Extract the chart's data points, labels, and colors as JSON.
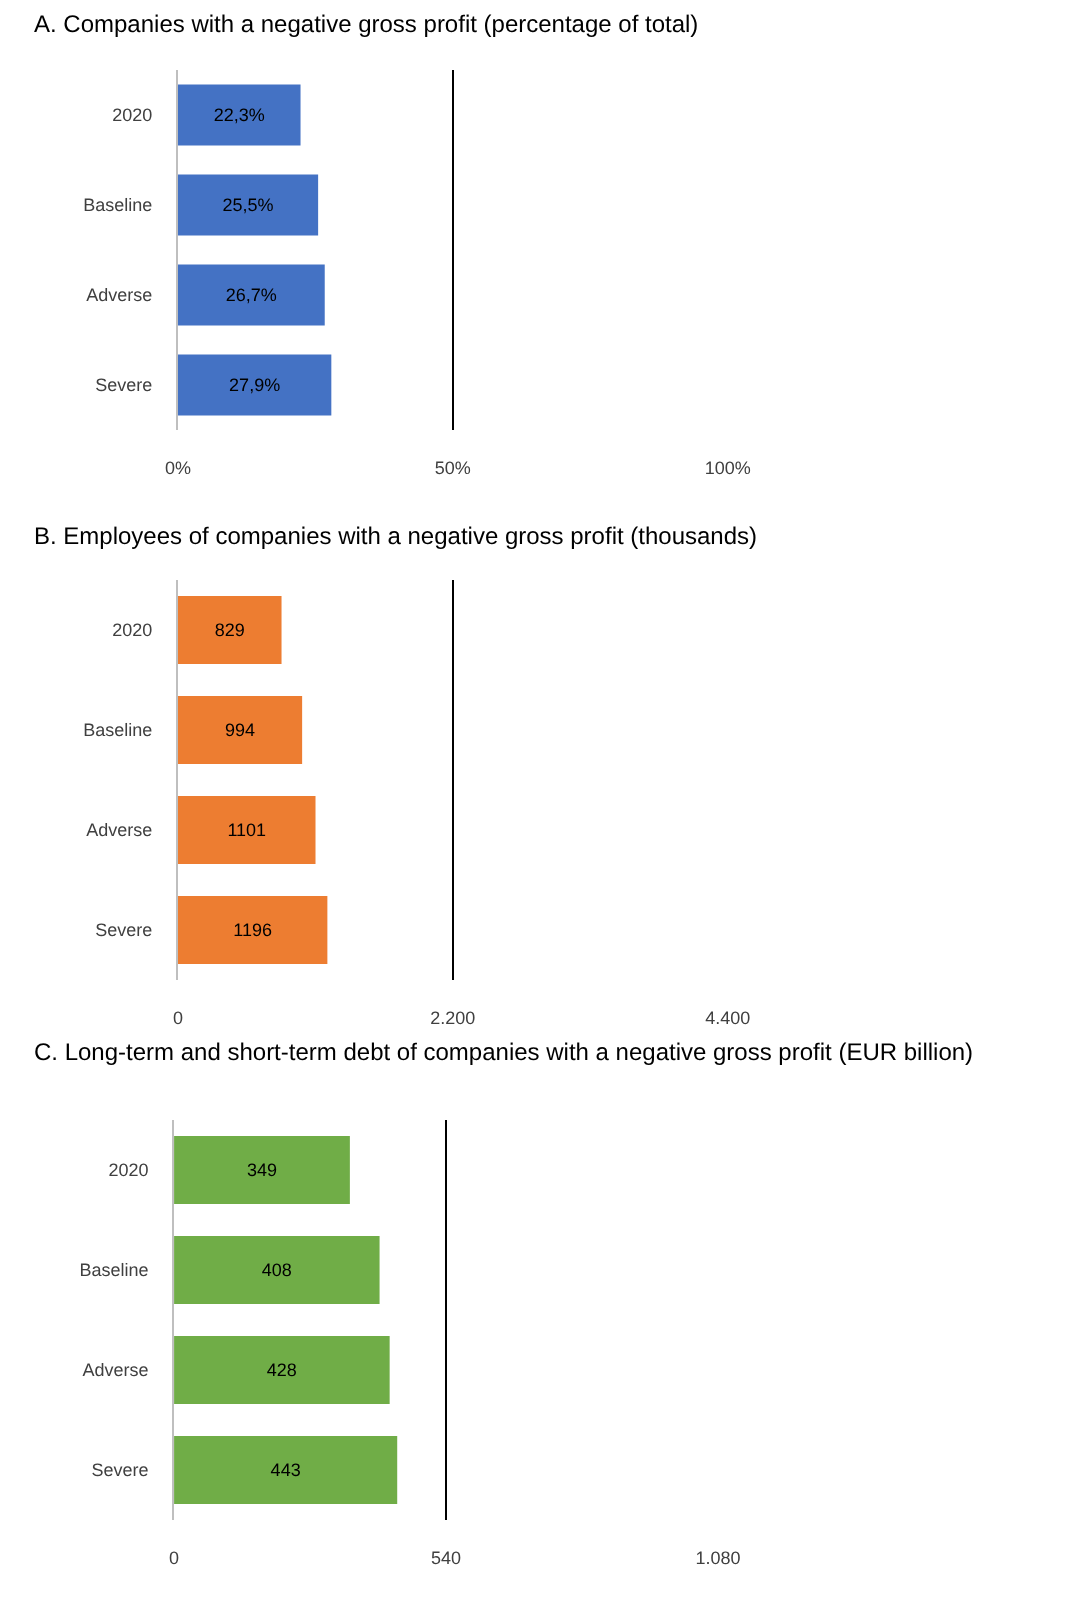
{
  "chart_data": [
    {
      "type": "bar",
      "orientation": "horizontal",
      "title": "A. Companies with a negative gross profit (percentage of total)",
      "categories": [
        "2020",
        "Baseline",
        "Adverse",
        "Severe"
      ],
      "series": [
        {
          "color": "#4472c4",
          "values": [
            22.3,
            25.5,
            26.7,
            27.9
          ],
          "value_labels": [
            "22,3%",
            "25,5%",
            "26,7%",
            "27,9%"
          ]
        }
      ],
      "xlim": [
        0,
        100
      ],
      "xticks": [
        {
          "value": 0,
          "label": "0%"
        },
        {
          "value": 50,
          "label": "50%"
        },
        {
          "value": 100,
          "label": "100%"
        }
      ],
      "grid": "x"
    },
    {
      "type": "bar",
      "orientation": "horizontal",
      "title": "B. Employees of companies with a negative gross profit (thousands)",
      "categories": [
        "2020",
        "Baseline",
        "Adverse",
        "Severe"
      ],
      "series": [
        {
          "color": "#ed7d31",
          "values": [
            829,
            994,
            1101,
            1196
          ]
        }
      ],
      "data_labels": true,
      "xlim": [
        0,
        4400
      ],
      "xticks": [
        0,
        {
          "value": 2200,
          "label": "2.200"
        },
        {
          "value": 4400,
          "label": "4.400"
        }
      ],
      "grid": "x"
    },
    {
      "type": "bar",
      "orientation": "horizontal",
      "title": "C. Long-term and short-term debt of companies with a negative gross profit (EUR billion)",
      "categories": [
        "2020",
        "Baseline",
        "Adverse",
        "Severe"
      ],
      "series": [
        {
          "color": "#70ad47",
          "values": [
            349,
            408,
            428,
            443
          ]
        }
      ],
      "data_labels": true,
      "xlim": [
        0,
        1080
      ],
      "xticks": [
        0,
        540,
        {
          "value": 1080,
          "label": "1.080"
        }
      ],
      "grid": "x"
    }
  ]
}
